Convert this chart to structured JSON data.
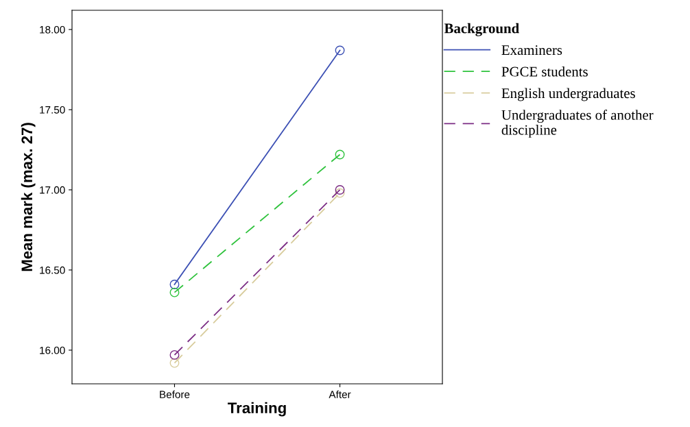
{
  "chart_data": {
    "type": "line",
    "xlabel": "Training",
    "ylabel": "Mean mark (max. 27)",
    "legend_title": "Background",
    "categories": [
      "Before",
      "After"
    ],
    "ylim": [
      15.79,
      18.12
    ],
    "yticks": [
      {
        "value": 16,
        "label": "16.00"
      },
      {
        "value": 16.5,
        "label": "16.50"
      },
      {
        "value": 17,
        "label": "17.00"
      },
      {
        "value": 17.5,
        "label": "17.50"
      },
      {
        "value": 18,
        "label": "18.00"
      }
    ],
    "grid": false,
    "legend": "right",
    "marker": "circle",
    "series": [
      {
        "name": "Examiners",
        "color": "#3c50b4",
        "line_style": "solid",
        "values": [
          16.41,
          17.87
        ]
      },
      {
        "name": "PGCE students",
        "color": "#2ec23c",
        "line_style": "dashed",
        "values": [
          16.36,
          17.22
        ]
      },
      {
        "name": "English undergraduates",
        "color": "#d8cc9c",
        "line_style": "dashed",
        "values": [
          15.92,
          16.98
        ]
      },
      {
        "name": "Undergraduates of another\ndiscipline",
        "color": "#7b2c84",
        "line_style": "dashed",
        "values": [
          15.97,
          17.0
        ]
      }
    ]
  }
}
